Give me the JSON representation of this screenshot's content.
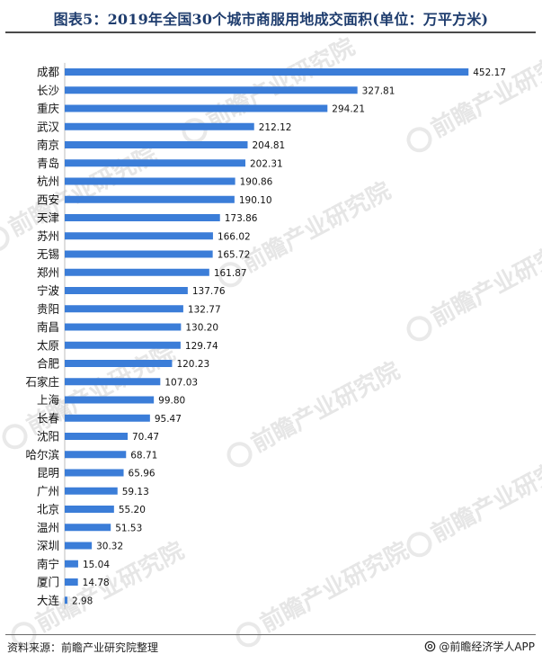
{
  "title": "图表5：2019年全国30个城市商服用地成交面积(单位：万平方米)",
  "source": "资料来源：前瞻产业研究院整理",
  "brand": "@前瞻经济学人APP",
  "watermark": "前瞻产业研究院",
  "colors": {
    "bar": "#3b7dd8",
    "title": "#1f3d6e"
  },
  "chart_data": {
    "type": "bar",
    "orientation": "horizontal",
    "title": "图表5：2019年全国30个城市商服用地成交面积(单位：万平方米)",
    "xlabel": "",
    "ylabel": "",
    "unit": "万平方米",
    "grid": false,
    "legend": "none",
    "categories": [
      "成都",
      "长沙",
      "重庆",
      "武汉",
      "南京",
      "青岛",
      "杭州",
      "西安",
      "天津",
      "苏州",
      "无锡",
      "郑州",
      "宁波",
      "贵阳",
      "南昌",
      "太原",
      "合肥",
      "石家庄",
      "上海",
      "长春",
      "沈阳",
      "哈尔滨",
      "昆明",
      "广州",
      "北京",
      "温州",
      "深圳",
      "南宁",
      "厦门",
      "大连"
    ],
    "values": [
      452.17,
      327.81,
      294.21,
      212.12,
      204.81,
      202.31,
      190.86,
      190.1,
      173.86,
      166.02,
      165.72,
      161.87,
      137.76,
      132.77,
      130.2,
      129.74,
      120.23,
      107.03,
      99.8,
      95.47,
      70.47,
      68.71,
      65.96,
      59.13,
      55.2,
      51.53,
      30.32,
      15.04,
      14.78,
      2.98
    ],
    "value_labels": [
      "452.17",
      "327.81",
      "294.21",
      "212.12",
      "204.81",
      "202.31",
      "190.86",
      "190.10",
      "173.86",
      "166.02",
      "165.72",
      "161.87",
      "137.76",
      "132.77",
      "130.20",
      "129.74",
      "120.23",
      "107.03",
      "99.80",
      "95.47",
      "70.47",
      "68.71",
      "65.96",
      "59.13",
      "55.20",
      "51.53",
      "30.32",
      "15.04",
      "14.78",
      "2.98"
    ]
  }
}
